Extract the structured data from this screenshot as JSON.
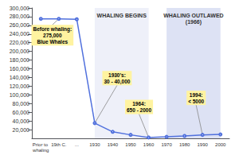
{
  "chart_data": {
    "type": "line",
    "categories": [
      "Prior to whaling",
      "19th C.",
      "...",
      "1930",
      "1940",
      "1950",
      "1960",
      "1970",
      "1980",
      "1990",
      "2000"
    ],
    "values": [
      275000,
      275000,
      274000,
      35000,
      15000,
      8000,
      2000,
      3500,
      5500,
      8000,
      9000
    ],
    "ylim": [
      0,
      300000
    ],
    "yticks": [
      {
        "value": 20000,
        "label": "20,000"
      },
      {
        "value": 40000,
        "label": "40,000"
      },
      {
        "value": 60000,
        "label": "60,000"
      },
      {
        "value": 80000,
        "label": "80,000"
      },
      {
        "value": 100000,
        "label": "100,000"
      },
      {
        "value": 120000,
        "label": "120,000"
      },
      {
        "value": 140000,
        "label": "140,000"
      },
      {
        "value": 160000,
        "label": "160,000"
      },
      {
        "value": 180000,
        "label": "180,000"
      },
      {
        "value": 200000,
        "label": "200,000"
      },
      {
        "value": 220000,
        "label": "220,000"
      },
      {
        "value": 240000,
        "label": "240,000"
      },
      {
        "value": 260000,
        "label": "260,000"
      },
      {
        "value": 280000,
        "label": "280,000"
      },
      {
        "value": 300000,
        "label": "300,000"
      }
    ],
    "grid": false,
    "zones": [
      {
        "label": "WHALING BEGINS",
        "from": "1930",
        "to": "1960"
      },
      {
        "label": "WHALING OUTLAWED\n(1966)",
        "from": "1970",
        "to": "2000"
      }
    ],
    "annotations": [
      {
        "text": "Before whaling:\n275,000\nBlue Whales",
        "category": "19th C."
      },
      {
        "text": "1930's:\n30 - 40,000",
        "category": "1930"
      },
      {
        "text": "1964:\n650 - 2000",
        "category": "1960"
      },
      {
        "text": "1994:\n< 5000",
        "category": "1990"
      }
    ]
  }
}
